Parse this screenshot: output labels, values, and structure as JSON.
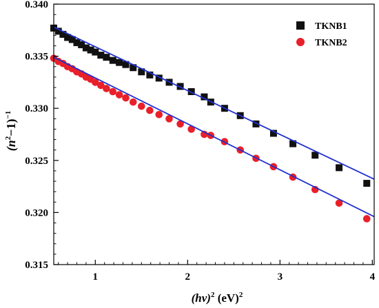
{
  "chart_data": {
    "type": "scatter",
    "title": "",
    "xlabel": {
      "base": "(hν)",
      "exp": "2",
      "unit": " (eV)",
      "unit_exp": "2"
    },
    "ylabel": {
      "base": "(n",
      "exp": "2",
      "mid": "−1)",
      "exp2": "−1"
    },
    "xlim": [
      0.55,
      4.02
    ],
    "ylim": [
      0.315,
      0.34
    ],
    "x_ticks": [
      "1",
      "2",
      "3",
      "4"
    ],
    "y_ticks": [
      "0.315",
      "0.320",
      "0.325",
      "0.330",
      "0.335",
      "0.340"
    ],
    "grid": false,
    "legend_position": "top-right",
    "fit_line_color": "#1f2fd0",
    "series": [
      {
        "name": "TKNB1",
        "marker": "square",
        "color": "#111111",
        "x": [
          0.55,
          0.6,
          0.65,
          0.7,
          0.75,
          0.8,
          0.85,
          0.9,
          0.95,
          1.0,
          1.06,
          1.12,
          1.19,
          1.26,
          1.33,
          1.41,
          1.5,
          1.59,
          1.69,
          1.8,
          1.92,
          2.04,
          2.18,
          2.25,
          2.4,
          2.57,
          2.74,
          2.93,
          3.14,
          3.38,
          3.64,
          3.94
        ],
        "y": [
          0.3377,
          0.3374,
          0.3371,
          0.3368,
          0.3366,
          0.3363,
          0.3361,
          0.3358,
          0.3356,
          0.3354,
          0.3351,
          0.3349,
          0.3346,
          0.3344,
          0.3342,
          0.3339,
          0.3335,
          0.3332,
          0.3329,
          0.3325,
          0.3321,
          0.3316,
          0.3311,
          0.3306,
          0.33,
          0.3293,
          0.3285,
          0.3276,
          0.3266,
          0.3255,
          0.3243,
          0.3228
        ],
        "fit": {
          "x": [
            0.55,
            4.02
          ],
          "y": [
            0.3378,
            0.3232
          ]
        }
      },
      {
        "name": "TKNB2",
        "marker": "circle",
        "color": "#e8202a",
        "x": [
          0.55,
          0.6,
          0.65,
          0.7,
          0.75,
          0.8,
          0.85,
          0.9,
          0.95,
          1.0,
          1.06,
          1.12,
          1.19,
          1.26,
          1.33,
          1.41,
          1.5,
          1.59,
          1.69,
          1.8,
          1.92,
          2.04,
          2.18,
          2.25,
          2.4,
          2.57,
          2.74,
          2.93,
          3.14,
          3.38,
          3.64,
          3.94
        ],
        "y": [
          0.3348,
          0.3345,
          0.3343,
          0.334,
          0.3338,
          0.3335,
          0.3333,
          0.333,
          0.3328,
          0.3325,
          0.3322,
          0.3319,
          0.3316,
          0.3313,
          0.331,
          0.3306,
          0.3302,
          0.3298,
          0.3294,
          0.329,
          0.3285,
          0.328,
          0.3275,
          0.3274,
          0.3268,
          0.326,
          0.3252,
          0.3244,
          0.3234,
          0.3222,
          0.3209,
          0.3194
        ],
        "fit": {
          "x": [
            0.55,
            4.02
          ],
          "y": [
            0.3349,
            0.3196
          ]
        }
      }
    ]
  }
}
